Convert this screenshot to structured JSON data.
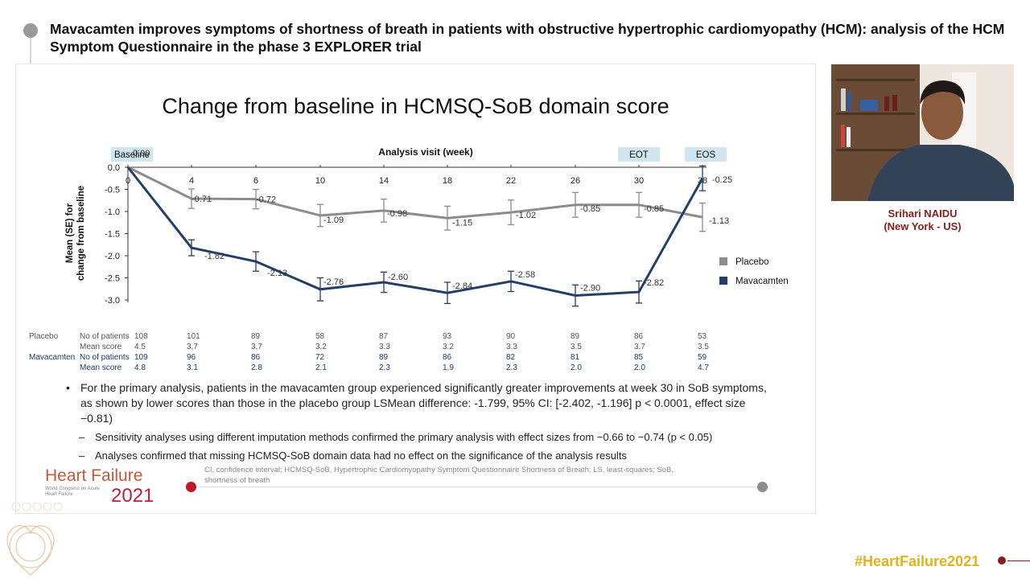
{
  "header": {
    "title": "Mavacamten improves symptoms of shortness of breath in patients with obstructive hypertrophic cardiomyopathy (HCM): analysis of the HCM Symptom Questionnaire in the phase 3 EXPLORER trial"
  },
  "slide": {
    "title": "Change from baseline in HCMSQ-SoB domain score",
    "bullet": "For the primary analysis, patients in the mavacamten group experienced significantly greater improvements at week 30 in SoB symptoms, as shown by lower scores than those in the placebo group LSMean difference: -1.799, 95% CI: [-2.402, -1.196] p < 0.0001, effect size −0.81)",
    "sub_bullets": [
      "Sensitivity analyses using different imputation methods confirmed the primary analysis with effect sizes from −0.66 to −0.74 (p < 0.05)",
      "Analyses confirmed that missing HCMSQ-SoB domain data had no effect on the significance of the analysis results"
    ],
    "footnote": "CI, confidence interval; HCMSQ-SoB, Hypertrophic Cardiomyopathy Symptom Questionnaire Shortness of Breath; LS, least-squares; SoB, shortness of breath",
    "logo": {
      "line1": "Heart Failure",
      "year": "2021",
      "tagline": "World Congress on Acute Heart Failure"
    }
  },
  "chart_data": {
    "type": "line",
    "title": "Change from baseline in HCMSQ-SoB domain score",
    "xlabel": "Analysis visit (week)",
    "ylabel": "Mean (SE) for change from baseline",
    "x": [
      0,
      4,
      6,
      10,
      14,
      18,
      22,
      26,
      30,
      38
    ],
    "ylim": [
      -3.0,
      0.0
    ],
    "yticks": [
      "0.0",
      "-0.5",
      "-1.0",
      "-1.5",
      "-2.0",
      "-2.5",
      "-3.0"
    ],
    "visit_badges": [
      "Baseline",
      "EOT",
      "EOS"
    ],
    "legend_position": "right",
    "grid": false,
    "series": [
      {
        "name": "Placebo",
        "color": "#8c8c8c",
        "values": [
          0.0,
          -0.71,
          -0.72,
          -1.09,
          -0.98,
          -1.15,
          -1.02,
          -0.85,
          -0.85,
          -1.13
        ],
        "labels": [
          "0.00",
          "-0.71",
          "-0.72",
          "-1.09",
          "-0.98",
          "-1.15",
          "-1.02",
          "-0.85",
          "-0.85",
          "-1.13"
        ],
        "se": [
          0,
          0.22,
          0.22,
          0.25,
          0.26,
          0.27,
          0.28,
          0.28,
          0.28,
          0.32
        ]
      },
      {
        "name": "Mavacamten",
        "color": "#243f66",
        "values": [
          0.0,
          -1.82,
          -2.13,
          -2.76,
          -2.6,
          -2.84,
          -2.58,
          -2.9,
          -2.82,
          -0.25
        ],
        "labels": [
          "",
          "-1.82",
          "-2.13",
          "-2.76",
          "-2.60",
          "-2.84",
          "-2.58",
          "-2.90",
          "-2.82",
          "-0.25"
        ],
        "se": [
          0,
          0.18,
          0.22,
          0.26,
          0.23,
          0.24,
          0.23,
          0.24,
          0.25,
          0.28
        ]
      }
    ],
    "table": {
      "row_labels": [
        "No of patients",
        "Mean score",
        "No of patients",
        "Mean score"
      ],
      "group_labels": [
        "Placebo",
        "Mavacamten"
      ],
      "placebo_n": [
        "108",
        "101",
        "89",
        "58",
        "87",
        "93",
        "90",
        "89",
        "86",
        "53"
      ],
      "placebo_mean": [
        "4.5",
        "3.7",
        "3.7",
        "3.2",
        "3.3",
        "3.2",
        "3.3",
        "3.5",
        "3.7",
        "3.5"
      ],
      "mava_n": [
        "109",
        "96",
        "86",
        "72",
        "89",
        "86",
        "82",
        "81",
        "85",
        "59"
      ],
      "mava_mean": [
        "4.8",
        "3.1",
        "2.8",
        "2.1",
        "2.3",
        "1.9",
        "2.3",
        "2.0",
        "2.0",
        "4.7"
      ]
    }
  },
  "speaker": {
    "name": "Srihari NAIDU",
    "location": "(New York - US)"
  },
  "footer": {
    "hashtag": "#HeartFailure2021"
  }
}
